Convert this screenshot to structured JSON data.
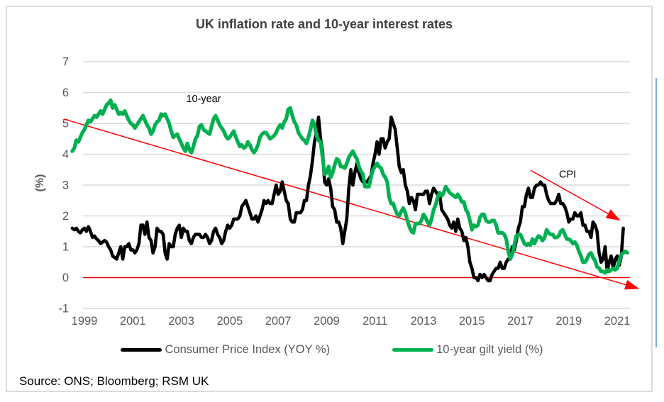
{
  "title": "UK inflation rate and 10-year interest rates",
  "source": "Source: ONS; Bloomberg; RSM UK",
  "y_axis": {
    "label": "(%)",
    "ticks": [
      7,
      6,
      5,
      4,
      3,
      2,
      1,
      0,
      -1
    ],
    "min": -1,
    "max": 7
  },
  "x_axis": {
    "ticks": [
      1999,
      2001,
      2003,
      2005,
      2007,
      2009,
      2011,
      2013,
      2015,
      2017,
      2019,
      2021
    ]
  },
  "legend": [
    {
      "label": "Consumer Price Index (YOY %)",
      "color": "#000000"
    },
    {
      "label": "10-year gilt yield (%)",
      "color": "#00B050"
    }
  ],
  "colors": {
    "cpi": "#000000",
    "gilt": "#00B050",
    "trend": "#FF0000",
    "gridline": "#D9D9D9",
    "axis_text": "#595959",
    "title_text": "#3F3F3F",
    "frame_border": "#DBDBDB",
    "accent_line": "#82ABDF"
  },
  "chart_data": {
    "type": "line",
    "title": "UK inflation rate and 10-year interest rates",
    "xlabel": "",
    "ylabel": "(%)",
    "ylim": [
      -1,
      7
    ],
    "xlim": [
      1998.4,
      2022.0
    ],
    "grid": true,
    "legend_position": "bottom",
    "x_tick_years": [
      1999,
      2001,
      2003,
      2005,
      2007,
      2009,
      2011,
      2013,
      2015,
      2017,
      2019,
      2021
    ],
    "series": [
      {
        "id": "cpi",
        "name": "Consumer Price Index (YOY %)",
        "color": "#000000",
        "stroke_width": 4.6,
        "start_year": 1998.5,
        "points_per_year": 12,
        "values": [
          1.6,
          1.55,
          1.6,
          1.5,
          1.45,
          1.55,
          1.6,
          1.5,
          1.65,
          1.5,
          1.3,
          1.35,
          1.25,
          1.2,
          1.1,
          1.15,
          1.2,
          1.15,
          1.0,
          0.9,
          0.7,
          0.65,
          0.6,
          0.8,
          1.0,
          0.6,
          1.0,
          1.0,
          1.1,
          0.9,
          0.9,
          0.8,
          0.9,
          1.1,
          1.7,
          1.7,
          1.4,
          1.8,
          1.3,
          1.2,
          0.8,
          1.0,
          1.6,
          1.5,
          1.5,
          1.4,
          0.8,
          0.6,
          1.1,
          1.0,
          1.0,
          1.4,
          1.6,
          1.7,
          1.3,
          1.6,
          1.5,
          1.5,
          1.2,
          1.1,
          1.3,
          1.4,
          1.4,
          1.4,
          1.3,
          1.3,
          1.4,
          1.3,
          1.1,
          1.2,
          1.5,
          1.6,
          1.4,
          1.3,
          1.1,
          1.2,
          1.5,
          1.7,
          1.6,
          1.7,
          1.9,
          1.9,
          1.9,
          2.0,
          2.3,
          2.4,
          2.5,
          2.3,
          2.1,
          1.9,
          1.9,
          2.0,
          1.8,
          2.0,
          2.2,
          2.5,
          2.4,
          2.5,
          2.4,
          2.4,
          2.7,
          3.0,
          2.7,
          2.8,
          3.1,
          2.8,
          2.5,
          2.4,
          1.9,
          1.8,
          1.8,
          2.1,
          2.1,
          2.1,
          2.2,
          2.5,
          2.5,
          3.0,
          3.3,
          3.8,
          4.4,
          4.7,
          5.2,
          4.5,
          4.1,
          3.1,
          3.0,
          3.2,
          2.9,
          2.3,
          2.2,
          1.8,
          1.8,
          1.6,
          1.1,
          1.5,
          1.9,
          2.9,
          3.5,
          3.0,
          3.4,
          3.7,
          3.4,
          3.2,
          3.1,
          3.1,
          3.1,
          3.2,
          3.3,
          3.7,
          4.0,
          4.4,
          4.0,
          4.5,
          4.5,
          4.2,
          4.4,
          4.5,
          5.2,
          5.0,
          4.8,
          4.2,
          3.6,
          3.4,
          3.5,
          3.0,
          2.8,
          2.4,
          2.6,
          2.5,
          2.2,
          2.7,
          2.7,
          2.7,
          2.7,
          2.8,
          2.8,
          2.4,
          2.7,
          2.9,
          2.8,
          2.7,
          2.7,
          2.2,
          2.1,
          2.0,
          1.9,
          1.7,
          1.6,
          1.8,
          1.5,
          1.9,
          1.6,
          1.5,
          1.2,
          1.3,
          1.0,
          0.5,
          0.3,
          0.0,
          0.0,
          -0.1,
          0.1,
          0.0,
          0.1,
          0.0,
          -0.1,
          -0.1,
          0.1,
          0.2,
          0.3,
          0.3,
          0.5,
          0.3,
          0.3,
          0.5,
          0.6,
          0.6,
          1.0,
          0.9,
          1.2,
          1.6,
          1.8,
          2.3,
          2.3,
          2.7,
          2.9,
          2.6,
          2.6,
          2.9,
          3.0,
          3.0,
          3.1,
          3.0,
          3.0,
          2.7,
          2.5,
          2.4,
          2.4,
          2.4,
          2.5,
          2.7,
          2.4,
          2.4,
          2.3,
          2.1,
          1.8,
          1.9,
          1.9,
          2.1,
          2.0,
          2.0,
          2.1,
          1.7,
          1.7,
          1.5,
          1.5,
          1.3,
          1.8,
          1.7,
          1.5,
          0.8,
          0.5,
          0.6,
          1.0,
          0.2,
          0.5,
          0.7,
          0.3,
          0.6,
          0.7,
          0.4,
          0.7,
          1.6
        ]
      },
      {
        "id": "gilt",
        "name": "10-year gilt yield (%)",
        "color": "#00B050",
        "stroke_width": 5.2,
        "start_year": 1998.5,
        "points_per_year": 12,
        "values": [
          4.1,
          4.2,
          4.45,
          4.4,
          4.55,
          4.7,
          4.8,
          4.95,
          5.1,
          5.05,
          5.15,
          5.25,
          5.2,
          5.3,
          5.4,
          5.3,
          5.45,
          5.6,
          5.65,
          5.75,
          5.5,
          5.6,
          5.45,
          5.3,
          5.35,
          5.3,
          5.4,
          5.25,
          5.1,
          5.0,
          4.95,
          4.85,
          4.95,
          5.05,
          5.15,
          5.25,
          5.1,
          4.95,
          4.85,
          4.65,
          4.75,
          4.95,
          5.05,
          5.1,
          5.3,
          5.25,
          5.3,
          5.15,
          5.0,
          4.75,
          4.55,
          4.6,
          4.65,
          4.5,
          4.35,
          4.2,
          4.1,
          4.35,
          4.15,
          4.05,
          4.25,
          4.5,
          4.6,
          4.9,
          4.95,
          4.8,
          4.75,
          4.7,
          4.65,
          4.9,
          5.15,
          5.25,
          5.1,
          4.95,
          4.85,
          4.75,
          4.6,
          4.5,
          4.55,
          4.65,
          4.75,
          4.55,
          4.4,
          4.25,
          4.3,
          4.2,
          4.25,
          4.4,
          4.3,
          4.15,
          4.05,
          4.15,
          4.3,
          4.55,
          4.65,
          4.7,
          4.7,
          4.6,
          4.5,
          4.55,
          4.6,
          4.7,
          4.85,
          4.95,
          4.85,
          5.05,
          5.15,
          5.45,
          5.5,
          5.25,
          5.05,
          4.95,
          4.7,
          4.6,
          4.5,
          4.45,
          4.35,
          4.55,
          4.8,
          5.1,
          4.95,
          4.6,
          4.45,
          4.4,
          3.9,
          3.35,
          3.4,
          3.6,
          3.25,
          3.4,
          3.65,
          3.85,
          3.8,
          3.6,
          3.6,
          3.55,
          3.7,
          3.9,
          4.0,
          4.1,
          3.95,
          3.85,
          3.6,
          3.45,
          3.35,
          2.95,
          2.95,
          2.95,
          3.25,
          3.5,
          3.6,
          3.7,
          3.6,
          3.55,
          3.35,
          3.25,
          3.1,
          2.6,
          2.4,
          2.4,
          2.2,
          2.05,
          2.0,
          2.15,
          2.25,
          2.1,
          1.85,
          1.65,
          1.5,
          1.45,
          1.75,
          1.75,
          1.75,
          1.85,
          2.05,
          1.95,
          1.8,
          1.7,
          1.9,
          2.2,
          2.35,
          2.6,
          2.75,
          2.65,
          2.75,
          2.95,
          2.85,
          2.75,
          2.7,
          2.65,
          2.6,
          2.7,
          2.6,
          2.45,
          2.45,
          2.2,
          2.1,
          1.85,
          1.55,
          1.7,
          1.65,
          1.7,
          1.95,
          2.05,
          2.05,
          1.85,
          1.8,
          1.8,
          1.85,
          1.85,
          1.7,
          1.45,
          1.45,
          1.45,
          1.4,
          1.25,
          0.85,
          0.6,
          0.75,
          1.05,
          1.35,
          1.4,
          1.4,
          1.25,
          1.1,
          1.05,
          1.1,
          1.05,
          1.25,
          1.1,
          1.25,
          1.35,
          1.3,
          1.2,
          1.3,
          1.55,
          1.45,
          1.4,
          1.4,
          1.3,
          1.3,
          1.35,
          1.5,
          1.55,
          1.4,
          1.25,
          1.25,
          1.2,
          1.1,
          1.15,
          1.05,
          0.85,
          0.7,
          0.5,
          0.5,
          0.6,
          0.75,
          0.8,
          0.65,
          0.55,
          0.35,
          0.3,
          0.2,
          0.2,
          0.15,
          0.25,
          0.2,
          0.25,
          0.3,
          0.25,
          0.3,
          0.55,
          0.75,
          0.8,
          0.85,
          0.8
        ]
      }
    ],
    "trend_lines": [
      {
        "id": "gilt-trend",
        "color": "#FF0000",
        "arrow": true,
        "from": {
          "year": 1998.15,
          "value": 5.14
        },
        "to": {
          "year": 2021.38,
          "value": -0.24
        }
      },
      {
        "id": "cpi-trend",
        "color": "#FF0000",
        "arrow": true,
        "from": {
          "year": 2017.42,
          "value": 3.48
        },
        "to": {
          "year": 2020.65,
          "value": 2.06
        }
      },
      {
        "id": "zero-reference-line",
        "color": "#FF0000",
        "arrow": false,
        "from": {
          "year": 1998.94,
          "value": 0
        },
        "to": {
          "year": 2021.52,
          "value": 0
        }
      }
    ],
    "annotations": [
      {
        "id": "gilt-annotation",
        "text": "10-year",
        "year": 2003.92,
        "value": 5.8
      },
      {
        "id": "cpi-annotation",
        "text": "CPI",
        "year": 2018.95,
        "value": 3.36
      }
    ]
  }
}
